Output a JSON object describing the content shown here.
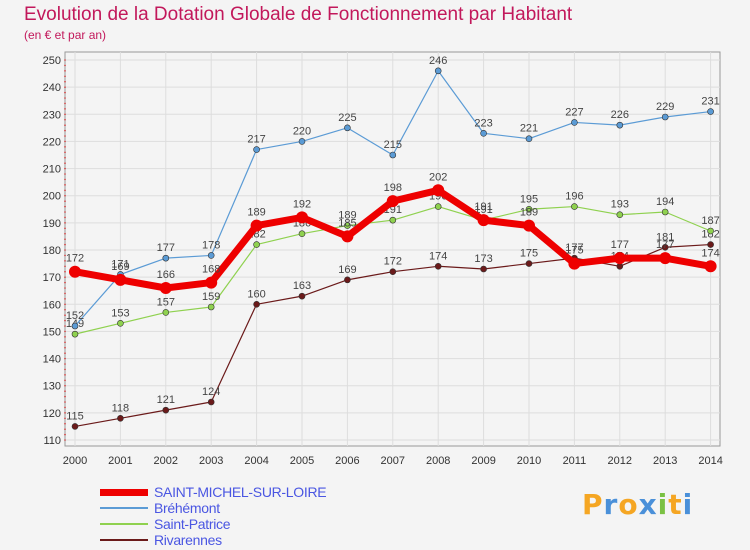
{
  "header": {
    "title": "Evolution de la Dotation Globale de Fonctionnement par Habitant",
    "subtitle": "(en € et par an)"
  },
  "brand": {
    "letters": [
      "P",
      "r",
      "o",
      "x",
      "i",
      "t",
      "i"
    ],
    "colors": [
      "#f5a623",
      "#4a90d9",
      "#f5a623",
      "#4a90d9",
      "#7ac143",
      "#f5a623",
      "#4a90d9"
    ]
  },
  "chart_data": {
    "type": "line",
    "title": "Evolution de la Dotation Globale de Fonctionnement par Habitant",
    "subtitle": "(en € et par an)",
    "xlabel": "",
    "ylabel": "",
    "ylim": [
      110,
      250
    ],
    "yticks": [
      "110",
      "120",
      "130",
      "140",
      "150",
      "160",
      "170",
      "180",
      "190",
      "200",
      "210",
      "220",
      "230",
      "240",
      "250"
    ],
    "categories": [
      "2000",
      "2001",
      "2002",
      "2003",
      "2004",
      "2005",
      "2006",
      "2007",
      "2008",
      "2009",
      "2010",
      "2011",
      "2012",
      "2013",
      "2014"
    ],
    "grid": true,
    "series": [
      {
        "name": "Rivarennes",
        "color": "#6b1a1a",
        "values": [
          115,
          118,
          121,
          124,
          160,
          163,
          169,
          172,
          174,
          173,
          175,
          177,
          174,
          181,
          182
        ],
        "labels": [
          "115",
          "118",
          "121",
          "124",
          "160",
          "163",
          "169",
          "172",
          "174",
          "173",
          "175",
          "177",
          "174",
          "181",
          "182"
        ]
      },
      {
        "name": "Saint-Patrice",
        "color": "#8fd14f",
        "values": [
          149,
          153,
          157,
          159,
          182,
          186,
          189,
          191,
          196,
          191,
          195,
          196,
          193,
          194,
          187
        ],
        "labels": [
          "149",
          "153",
          "157",
          "159",
          "182",
          "186",
          "189",
          "191",
          "196",
          "191",
          "195",
          "196",
          "193",
          "194",
          "187"
        ]
      },
      {
        "name": "Bréhémont",
        "color": "#5b9bd5",
        "values": [
          152,
          171,
          177,
          178,
          217,
          220,
          225,
          215,
          246,
          223,
          221,
          227,
          226,
          229,
          231
        ],
        "labels": [
          "152",
          "171",
          "177",
          "178",
          "217",
          "220",
          "225",
          "215",
          "246",
          "223",
          "221",
          "227",
          "226",
          "229",
          "231"
        ]
      },
      {
        "name": "SAINT-MICHEL-SUR-LOIRE",
        "color": "#ee0000",
        "values": [
          172,
          169,
          166,
          168,
          189,
          192,
          185,
          198,
          202,
          191,
          189,
          175,
          177,
          177,
          174
        ],
        "labels": [
          "172",
          "169",
          "166",
          "168",
          "189",
          "192",
          "185",
          "198",
          "202",
          "191",
          "189",
          "175",
          "177",
          "177",
          "174"
        ]
      }
    ],
    "legend": [
      "SAINT-MICHEL-SUR-LOIRE",
      "Bréhémont",
      "Saint-Patrice",
      "Rivarennes"
    ]
  }
}
